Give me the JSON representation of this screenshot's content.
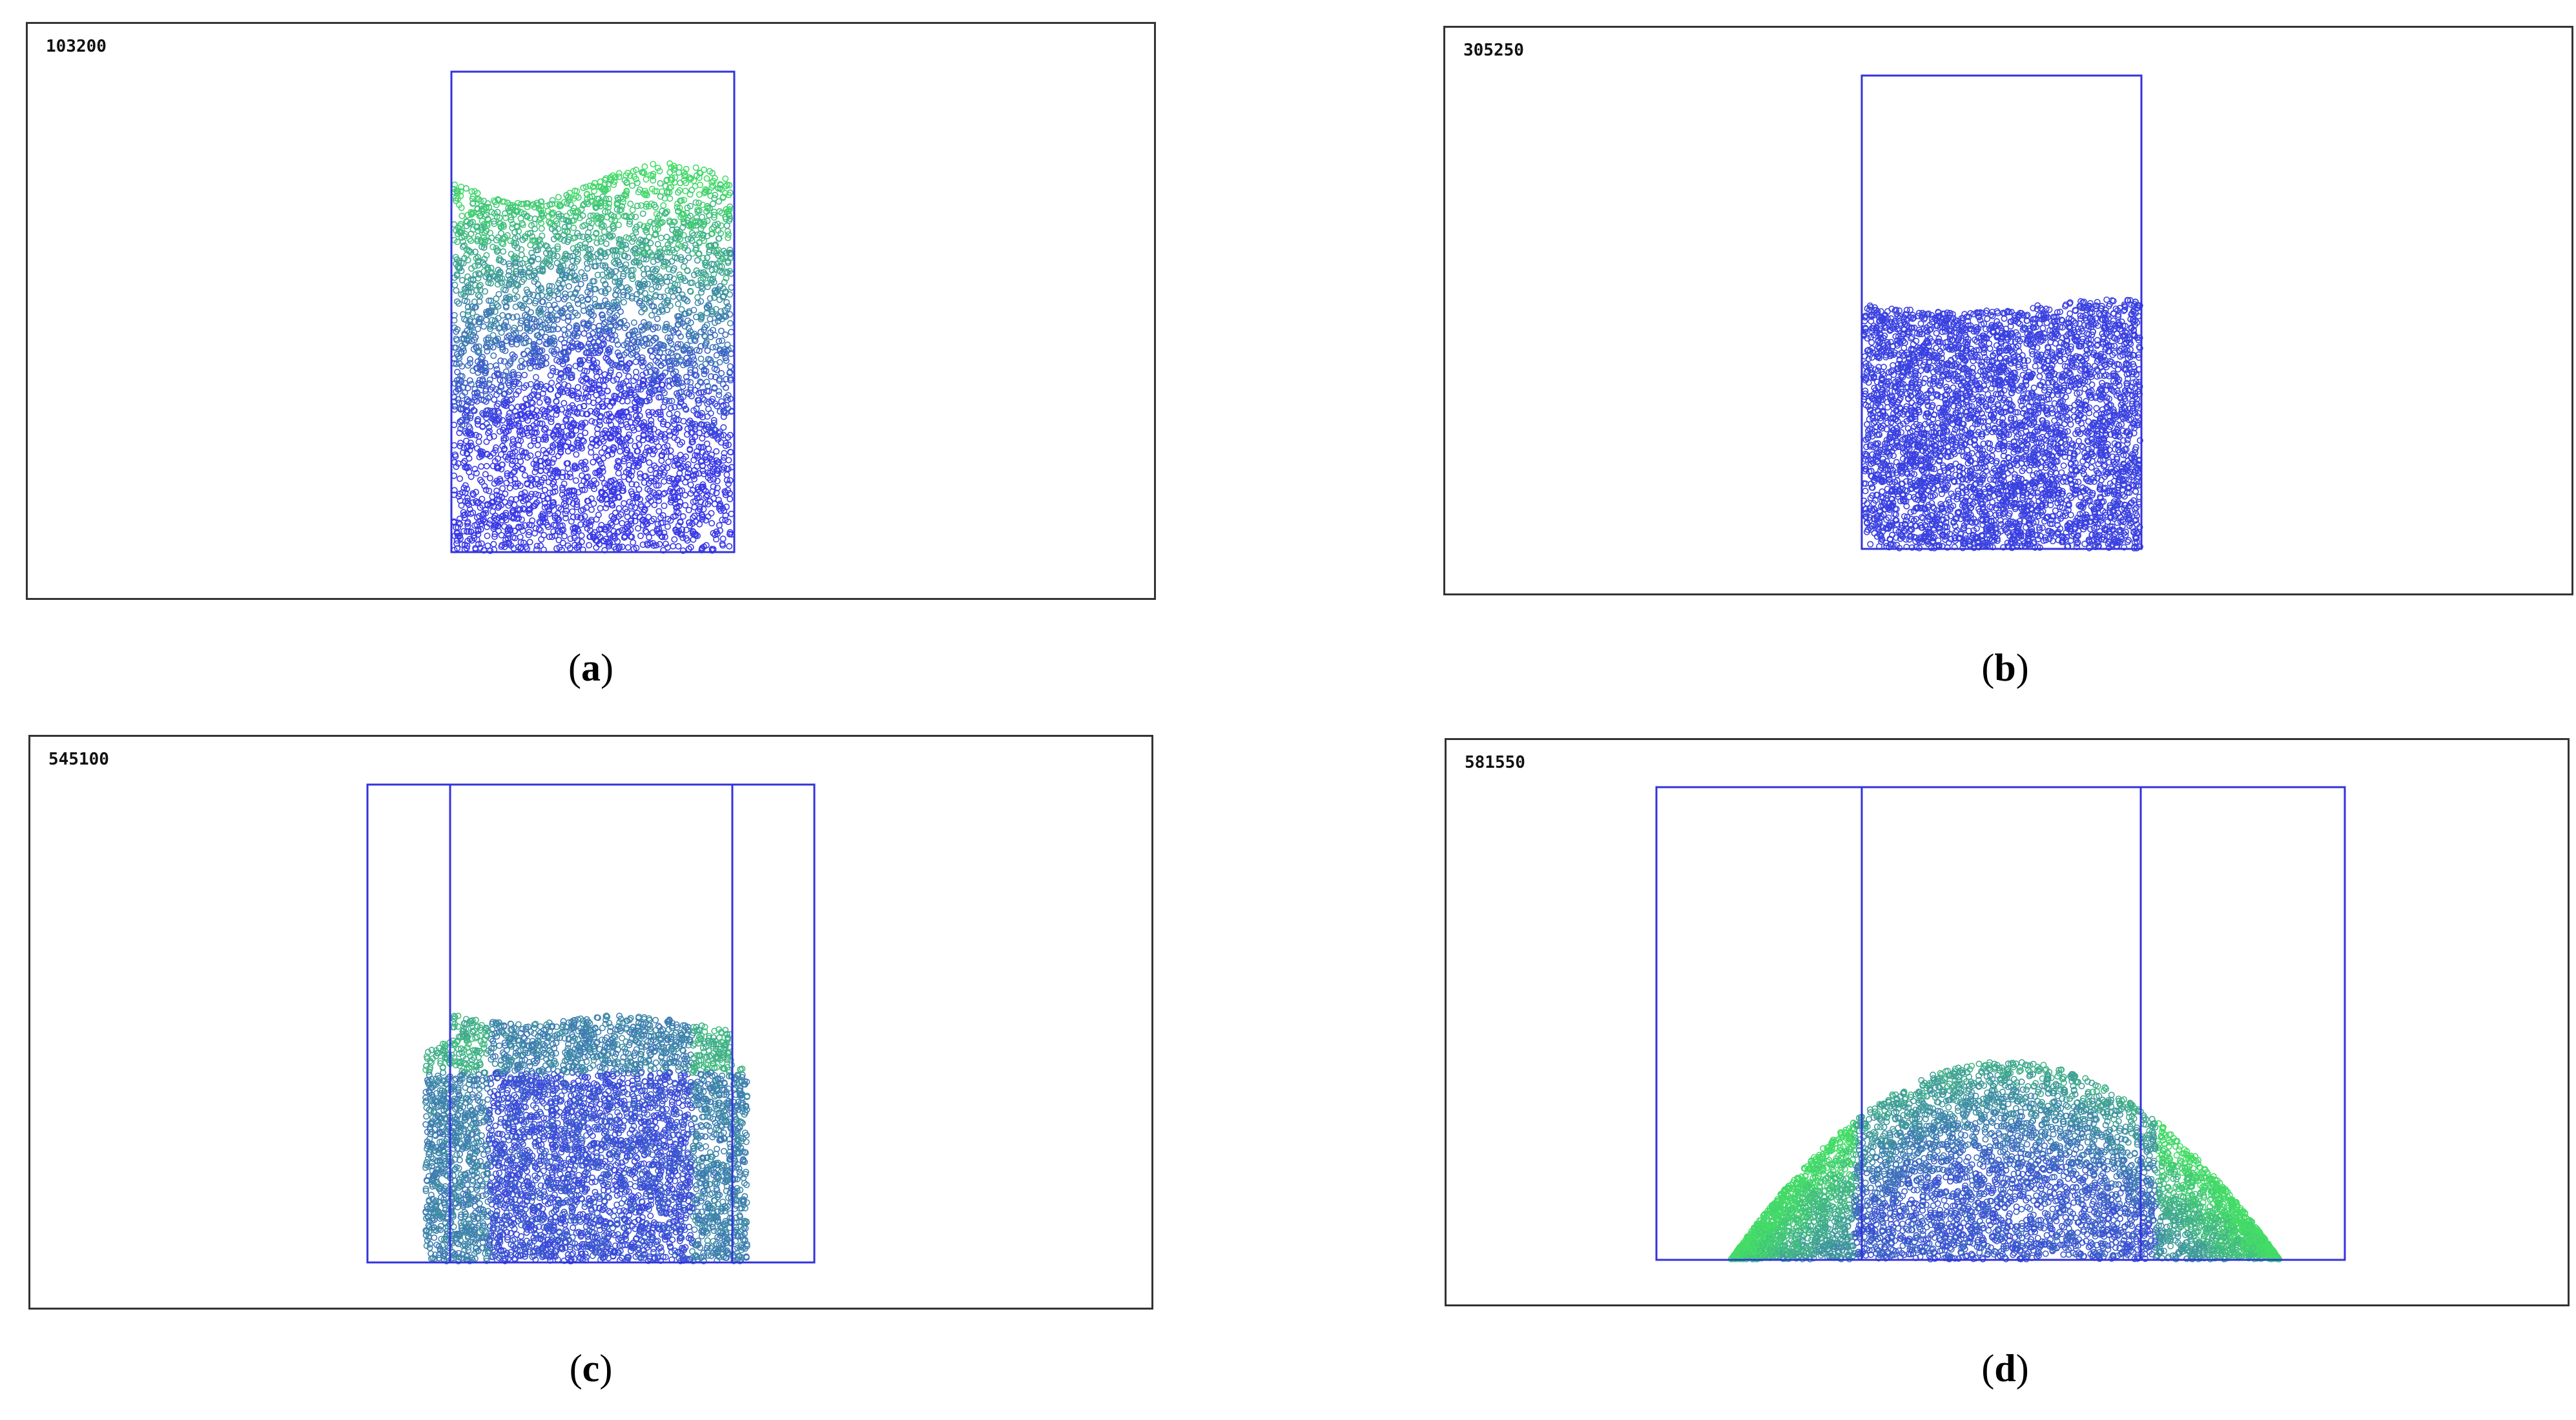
{
  "colors": {
    "frame": "#333333",
    "container": "#3333dd",
    "particle_settled": "#3a3ae6",
    "particle_falling": "#44dd66"
  },
  "panels": [
    {
      "id": "a",
      "step_label": "103200",
      "caption_open": "(",
      "caption_letter": "a",
      "caption_close": ")"
    },
    {
      "id": "b",
      "step_label": "305250",
      "caption_open": "(",
      "caption_letter": "b",
      "caption_close": ")"
    },
    {
      "id": "c",
      "step_label": "545100",
      "caption_open": "(",
      "caption_letter": "c",
      "caption_close": ")"
    },
    {
      "id": "d",
      "step_label": "581550",
      "caption_open": "(",
      "caption_letter": "d",
      "caption_close": ")"
    }
  ]
}
